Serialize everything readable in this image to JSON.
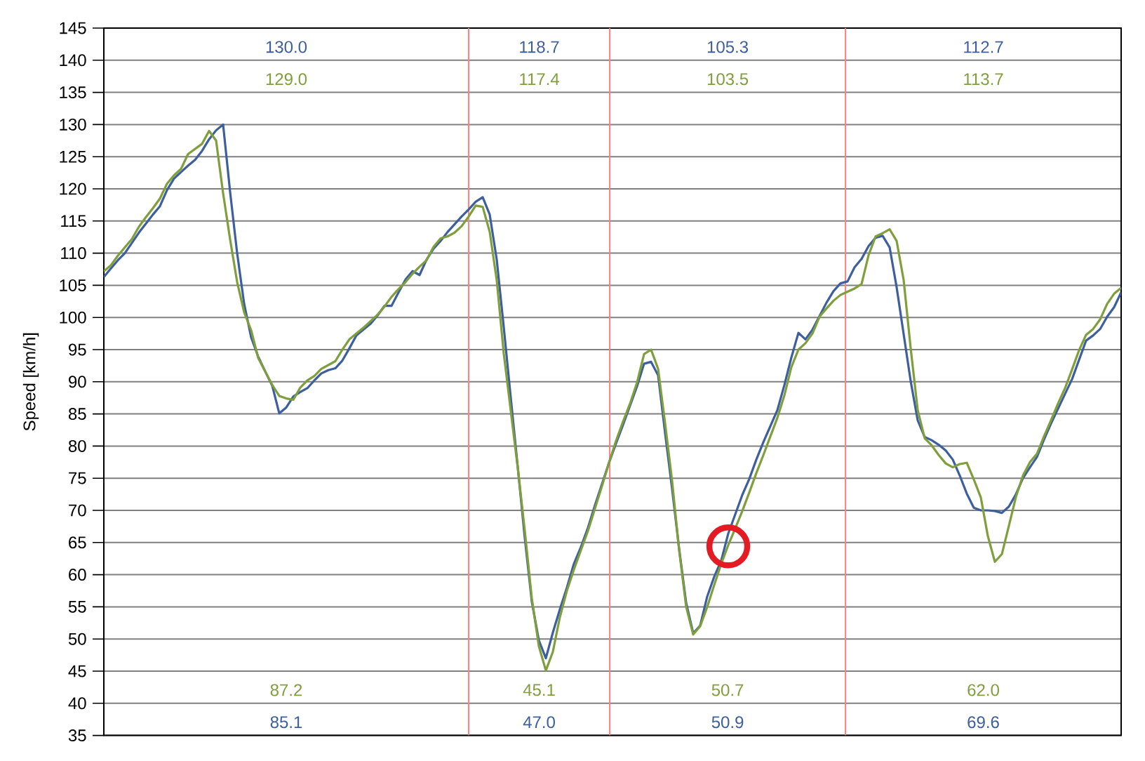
{
  "chart_data": {
    "type": "line",
    "ylabel": "Speed [km/h]",
    "categories": [
      null,
      null,
      null,
      null,
      null,
      null,
      null,
      null,
      null,
      null,
      null,
      null,
      null,
      null,
      null,
      null,
      null,
      null,
      null,
      null,
      null,
      null,
      null,
      null,
      null,
      null,
      null,
      null,
      null,
      null,
      null,
      null,
      null,
      null,
      null,
      null,
      null,
      null,
      null,
      null,
      null,
      null,
      null,
      null,
      null,
      null,
      null,
      null,
      null,
      null,
      null,
      null,
      null,
      null,
      null,
      null,
      null,
      null,
      null,
      null,
      null,
      null,
      null,
      null,
      null,
      null,
      null,
      null,
      null,
      null,
      null,
      null,
      null,
      null,
      null,
      null,
      null,
      null,
      null,
      null,
      null,
      null,
      null,
      null,
      null,
      null,
      null,
      null,
      null,
      null,
      null,
      null,
      null,
      null,
      null,
      null,
      null,
      null,
      null,
      null,
      null,
      null,
      null,
      null,
      null,
      null,
      null,
      null,
      null,
      null,
      null,
      null,
      null,
      null,
      null,
      null,
      null,
      null,
      null,
      null,
      null,
      null,
      null,
      null,
      null,
      null,
      null,
      null,
      null,
      null,
      null,
      null,
      null,
      null,
      null,
      null,
      null,
      null,
      null,
      null,
      null,
      null,
      null,
      null,
      null,
      null
    ],
    "series": [
      {
        "color": "#3d5f9f",
        "values": [
          106.3,
          107.6,
          108.9,
          110.0,
          111.6,
          113.2,
          114.6,
          116.0,
          117.3,
          119.8,
          121.6,
          122.6,
          123.6,
          124.5,
          125.9,
          127.7,
          129.1,
          130.0,
          119.5,
          110.0,
          102.1,
          96.9,
          93.9,
          91.6,
          89.4,
          85.1,
          86.0,
          87.7,
          88.4,
          89.0,
          90.2,
          91.3,
          91.8,
          92.1,
          93.3,
          95.2,
          97.2,
          98.1,
          99.0,
          100.3,
          101.8,
          101.8,
          103.9,
          105.9,
          107.2,
          106.6,
          109.0,
          110.7,
          111.9,
          113.3,
          114.5,
          115.7,
          116.8,
          118.0,
          118.7,
          116.0,
          109.0,
          98.5,
          87.5,
          76.7,
          65.7,
          55.8,
          49.8,
          47.0,
          51.0,
          54.6,
          58.0,
          61.7,
          64.3,
          67.3,
          70.8,
          74.1,
          77.4,
          80.4,
          83.3,
          86.3,
          89.3,
          92.8,
          93.1,
          91.0,
          82.0,
          73.3,
          64.0,
          55.6,
          50.9,
          52.1,
          56.6,
          59.7,
          62.2,
          66.4,
          69.4,
          72.4,
          74.9,
          77.9,
          80.6,
          83.1,
          85.6,
          89.5,
          93.8,
          97.6,
          96.6,
          98.1,
          100.2,
          102.3,
          104.1,
          105.3,
          105.6,
          107.8,
          109.1,
          111.1,
          112.4,
          112.7,
          110.9,
          104.7,
          97.4,
          90.1,
          84.0,
          81.4,
          80.9,
          80.2,
          79.3,
          77.9,
          75.4,
          72.6,
          70.4,
          70.0,
          70.0,
          69.9,
          69.6,
          70.6,
          72.5,
          75.0,
          76.7,
          78.3,
          81.0,
          83.5,
          85.8,
          88.1,
          90.4,
          93.4,
          96.4,
          97.2,
          98.2,
          100.1,
          101.6,
          103.9
        ]
      },
      {
        "color": "#7f9e3c",
        "values": [
          107.2,
          108.1,
          109.6,
          110.9,
          112.2,
          114.1,
          115.6,
          117.0,
          118.5,
          120.8,
          122.1,
          123.1,
          125.4,
          126.2,
          127.0,
          129.0,
          127.5,
          119.3,
          112.1,
          105.5,
          100.8,
          98.0,
          93.7,
          91.6,
          89.5,
          87.8,
          87.4,
          87.2,
          89.1,
          90.2,
          90.9,
          92.0,
          92.6,
          93.2,
          95.0,
          96.6,
          97.5,
          98.4,
          99.4,
          100.4,
          101.7,
          103.2,
          104.4,
          105.5,
          106.8,
          107.9,
          108.9,
          111.0,
          112.3,
          112.6,
          113.2,
          114.2,
          115.7,
          117.4,
          117.2,
          113.3,
          105.8,
          94.4,
          85.5,
          76.6,
          66.8,
          56.3,
          48.9,
          45.1,
          48.0,
          53.4,
          57.5,
          60.8,
          63.8,
          66.8,
          70.3,
          73.8,
          77.4,
          80.8,
          83.8,
          86.6,
          89.9,
          94.3,
          95.0,
          92.0,
          83.5,
          74.5,
          63.8,
          55.0,
          50.7,
          52.0,
          55.0,
          58.4,
          61.7,
          64.6,
          67.2,
          69.9,
          72.8,
          75.8,
          78.6,
          81.5,
          84.4,
          87.9,
          92.3,
          95.0,
          96.0,
          97.5,
          100.1,
          101.4,
          102.6,
          103.5,
          104.0,
          104.5,
          105.2,
          109.7,
          112.6,
          113.1,
          113.7,
          111.9,
          105.8,
          95.2,
          85.6,
          81.2,
          80.1,
          78.6,
          77.3,
          76.7,
          77.2,
          77.4,
          74.8,
          72.0,
          66.0,
          62.0,
          63.2,
          67.6,
          72.1,
          75.4,
          77.5,
          78.8,
          81.5,
          84.0,
          86.6,
          89.0,
          91.9,
          94.9,
          97.3,
          98.2,
          99.7,
          102.1,
          103.7,
          104.6
        ]
      },
      {
        "type": "scatter",
        "marker": "circle",
        "color": "#e31b23",
        "values": [
          null,
          null,
          null,
          null,
          null,
          null,
          null,
          null,
          null,
          null,
          null,
          null,
          null,
          null,
          null,
          null,
          null,
          null,
          null,
          null,
          null,
          null,
          null,
          null,
          null,
          null,
          null,
          null,
          null,
          null,
          null,
          null,
          null,
          null,
          null,
          null,
          null,
          null,
          null,
          null,
          null,
          null,
          null,
          null,
          null,
          null,
          null,
          null,
          null,
          null,
          null,
          null,
          null,
          null,
          null,
          null,
          null,
          null,
          null,
          null,
          null,
          null,
          null,
          null,
          null,
          null,
          null,
          null,
          null,
          null,
          null,
          null,
          null,
          null,
          null,
          null,
          null,
          null,
          null,
          null,
          null,
          null,
          null,
          null,
          null,
          null,
          null,
          null,
          null,
          64.4,
          null,
          null,
          null,
          null,
          null,
          null,
          null,
          null,
          null,
          null,
          null,
          null,
          null,
          null,
          null,
          null,
          null,
          null,
          null,
          null,
          null,
          null,
          null,
          null,
          null,
          null,
          null,
          null,
          null,
          null,
          null,
          null,
          null,
          null,
          null,
          null,
          null,
          null,
          null,
          null,
          null,
          null,
          null,
          null,
          null,
          null,
          null,
          null,
          null,
          null,
          null,
          null,
          null,
          null,
          null,
          null
        ]
      }
    ],
    "ylim": [
      35,
      145
    ],
    "yticks": [
      35,
      40,
      45,
      50,
      55,
      60,
      65,
      70,
      75,
      80,
      85,
      90,
      95,
      100,
      105,
      110,
      115,
      120,
      125,
      130,
      135,
      140,
      145
    ],
    "grid": "y",
    "tick_labels": "y",
    "annotations": [
      "130.0",
      "129.0",
      "87.2",
      "85.1",
      "118.7",
      "117.4",
      "45.1",
      "47.0",
      "105.3",
      "103.5",
      "50.7",
      "50.9",
      "112.7",
      "113.7",
      "62.0",
      "69.6"
    ]
  }
}
